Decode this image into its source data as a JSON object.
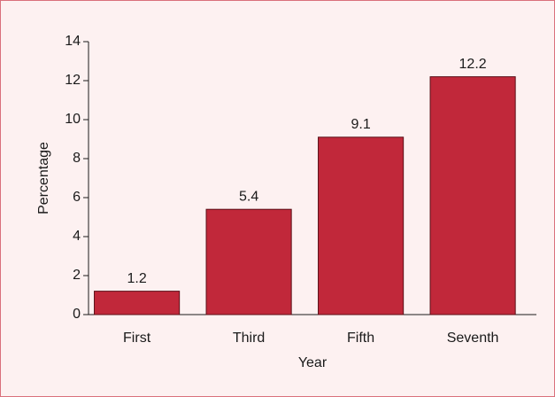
{
  "chart_data": {
    "type": "bar",
    "x_label": "Year",
    "y_label": "Percentage",
    "categories": [
      "First",
      "Third",
      "Fifth",
      "Seventh"
    ],
    "values": [
      1.2,
      5.4,
      9.1,
      12.2
    ],
    "color": "#c1283a",
    "ylim": [
      0,
      14
    ],
    "yticks": [
      0,
      2,
      4,
      6,
      8,
      10,
      12,
      14
    ],
    "grid": false
  }
}
